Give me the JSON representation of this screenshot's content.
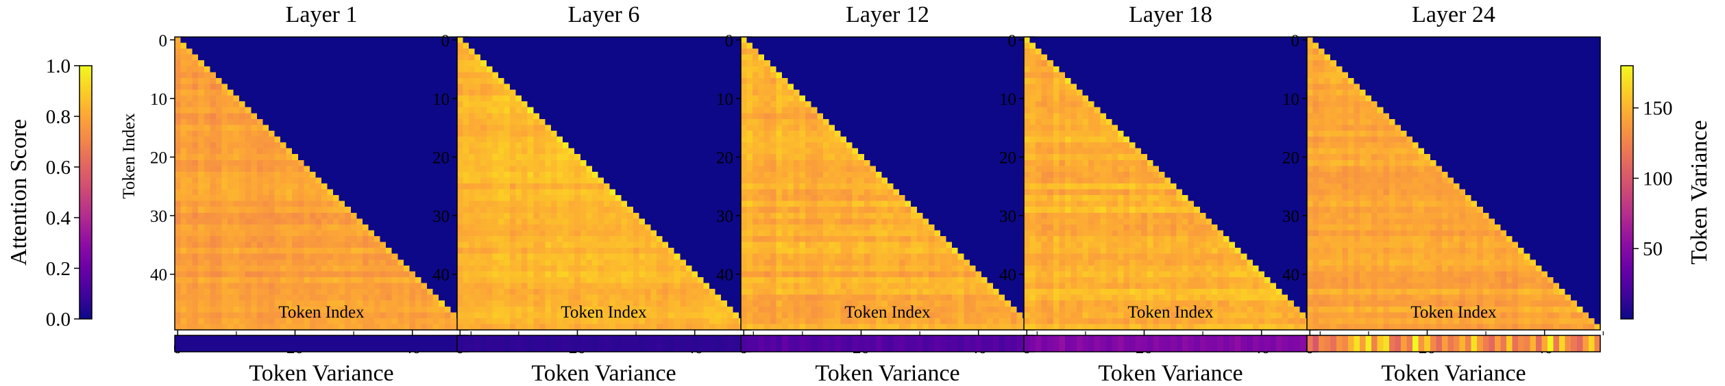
{
  "colormap": "plasma",
  "colors": {
    "masked": "#0d0887",
    "background": "#ffffff",
    "frame": "#000000"
  },
  "chart_data": {
    "type": "heatmap",
    "description_type": "attention-heatmaps-with-token-variance-strips",
    "matrix_size": 50,
    "mask": "upper-triangle",
    "panels": [
      {
        "title": "Layer 1",
        "attention_mean": 0.78,
        "attention_spread": 0.05,
        "variance_values": [
          6,
          6,
          6,
          6,
          6,
          6,
          6,
          6,
          6,
          6,
          6,
          6,
          6,
          6,
          6,
          6,
          6,
          6,
          6,
          6,
          6,
          6,
          6,
          6,
          6,
          6,
          6,
          6,
          6,
          6,
          6,
          6,
          6,
          6,
          6,
          6,
          6,
          6,
          6,
          6,
          6,
          6,
          6,
          6,
          6,
          6,
          6,
          6,
          6,
          6
        ]
      },
      {
        "title": "Layer 6",
        "attention_mean": 0.84,
        "attention_spread": 0.05,
        "variance_values": [
          10,
          12,
          11,
          13,
          10,
          12,
          11,
          12,
          10,
          11,
          13,
          12,
          10,
          11,
          12,
          10,
          11,
          12,
          13,
          11,
          10,
          12,
          11,
          10,
          12,
          13,
          11,
          10,
          12,
          11,
          12,
          10,
          11,
          12,
          13,
          11,
          10,
          12,
          11,
          12,
          10,
          11,
          12,
          11,
          10,
          12,
          13,
          11,
          12,
          10
        ]
      },
      {
        "title": "Layer 12",
        "attention_mean": 0.82,
        "attention_spread": 0.06,
        "variance_values": [
          22,
          26,
          24,
          30,
          25,
          28,
          22,
          34,
          26,
          24,
          30,
          27,
          23,
          25,
          28,
          24,
          30,
          26,
          22,
          28,
          25,
          27,
          24,
          32,
          26,
          22,
          28,
          30,
          24,
          26,
          28,
          22,
          25,
          30,
          27,
          24,
          26,
          22,
          28,
          25,
          30,
          24,
          26,
          28,
          22,
          27,
          25,
          30,
          24,
          26
        ]
      },
      {
        "title": "Layer 18",
        "attention_mean": 0.83,
        "attention_spread": 0.06,
        "variance_values": [
          40,
          44,
          50,
          42,
          46,
          48,
          55,
          43,
          45,
          52,
          47,
          44,
          50,
          46,
          42,
          48,
          53,
          45,
          44,
          49,
          47,
          43,
          51,
          46,
          45,
          48,
          44,
          52,
          47,
          43,
          50,
          46,
          45,
          49,
          44,
          48,
          54,
          46,
          43,
          50,
          45,
          47,
          44,
          52,
          48,
          45,
          46,
          50,
          43,
          47
        ]
      },
      {
        "title": "Layer 24",
        "attention_mean": 0.8,
        "attention_spread": 0.05,
        "variance_values": [
          120,
          100,
          130,
          125,
          115,
          135,
          128,
          150,
          170,
          140,
          175,
          125,
          160,
          170,
          118,
          110,
          140,
          122,
          180,
          135,
          160,
          128,
          112,
          140,
          120,
          130,
          150,
          125,
          170,
          138,
          122,
          110,
          140,
          120,
          160,
          115,
          130,
          125,
          150,
          112,
          145,
          178,
          120,
          165,
          130,
          120,
          110,
          140,
          165,
          125
        ]
      }
    ],
    "xlabel": "Token Index",
    "ylabel": "Token Index",
    "axis_ticks": [
      "0",
      "10",
      "20",
      "30",
      "40"
    ],
    "x_ticks": [
      "0",
      "20",
      "40"
    ],
    "strip_label": "Token Variance",
    "attention_colorbar": {
      "label": "Attention Score",
      "ylim": [
        0,
        1
      ],
      "ticks": [
        "0.0",
        "0.2",
        "0.4",
        "0.6",
        "0.8",
        "1.0"
      ]
    },
    "variance_colorbar": {
      "label": "Token Variance",
      "ylim": [
        0,
        180
      ],
      "ticks": [
        "50",
        "100",
        "150"
      ],
      "tick_values": [
        50,
        100,
        150
      ]
    }
  }
}
